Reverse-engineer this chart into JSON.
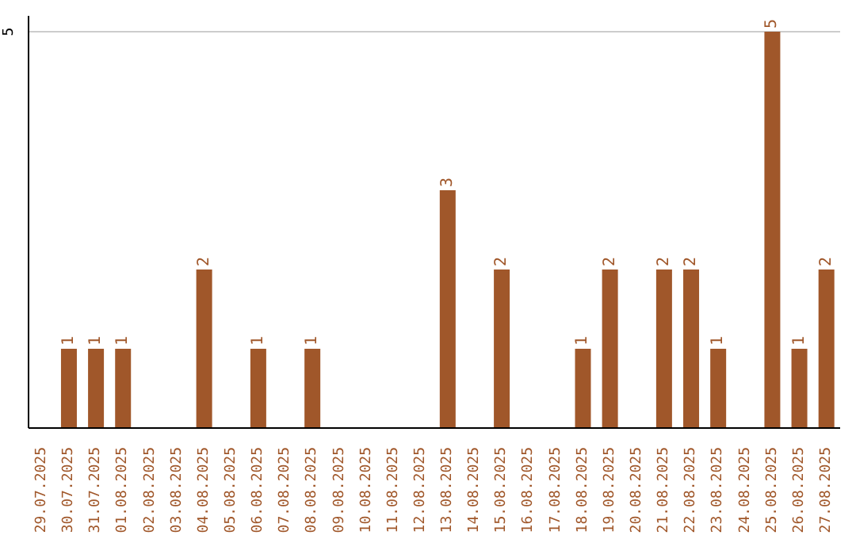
{
  "chart_data": {
    "type": "bar",
    "categories": [
      "29.07.2025",
      "30.07.2025",
      "31.07.2025",
      "01.08.2025",
      "02.08.2025",
      "03.08.2025",
      "04.08.2025",
      "05.08.2025",
      "06.08.2025",
      "07.08.2025",
      "08.08.2025",
      "09.08.2025",
      "10.08.2025",
      "11.08.2025",
      "12.08.2025",
      "13.08.2025",
      "14.08.2025",
      "15.08.2025",
      "16.08.2025",
      "17.08.2025",
      "18.08.2025",
      "19.08.2025",
      "20.08.2025",
      "21.08.2025",
      "22.08.2025",
      "23.08.2025",
      "24.08.2025",
      "25.08.2025",
      "26.08.2025",
      "27.08.2025"
    ],
    "values": [
      0,
      1,
      1,
      1,
      0,
      0,
      2,
      0,
      1,
      0,
      1,
      0,
      0,
      0,
      0,
      3,
      0,
      2,
      0,
      0,
      1,
      2,
      0,
      2,
      2,
      1,
      0,
      5,
      1,
      2
    ],
    "value_labels": [
      null,
      "1",
      "1",
      "1",
      null,
      null,
      "2",
      null,
      "1",
      null,
      "1",
      null,
      null,
      null,
      null,
      "3",
      null,
      "2",
      null,
      null,
      "1",
      "2",
      null,
      "2",
      "2",
      "1",
      null,
      "5",
      "1",
      "2"
    ],
    "color": "#a0572a",
    "ylim": [
      0,
      5.2
    ],
    "yticks": [
      5
    ],
    "grid": "y"
  }
}
